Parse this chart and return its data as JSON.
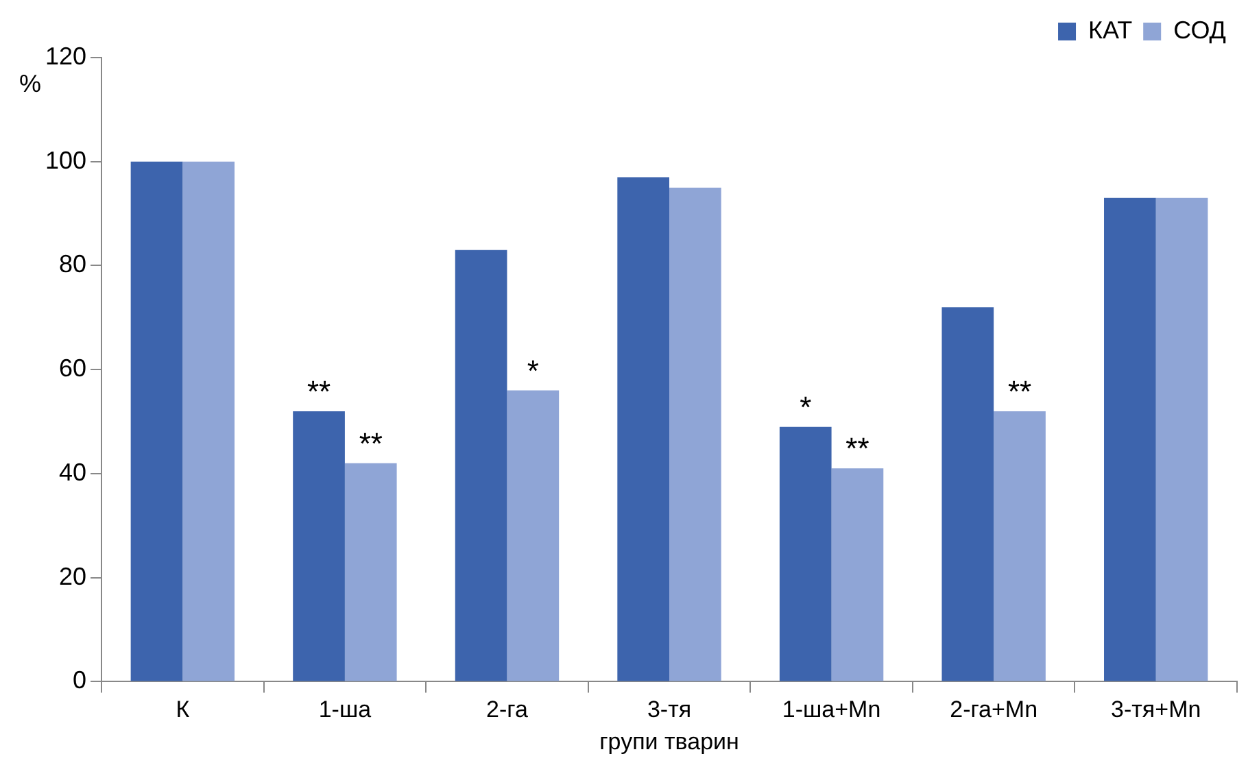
{
  "chart_data": {
    "type": "bar",
    "xlabel": "групи тварин",
    "ylabel": "%",
    "categories": [
      "К",
      "1-ша",
      "2-га",
      "3-тя",
      "1-ша+Mn",
      "2-га+Mn",
      "3-тя+Mn"
    ],
    "series": [
      {
        "name": "КАТ",
        "color": "#3d64ad",
        "values": [
          100,
          52,
          83,
          97,
          49,
          72,
          93
        ]
      },
      {
        "name": "СОД",
        "color": "#8fa5d6",
        "values": [
          100,
          42,
          56,
          95,
          41,
          52,
          93
        ]
      }
    ],
    "ylim": [
      0,
      120
    ],
    "yticks": [
      0,
      20,
      40,
      60,
      80,
      100,
      120
    ],
    "grid": false,
    "legend": "top right",
    "annotations": [
      {
        "text": "**",
        "x": "1-ша",
        "y": 52
      },
      {
        "text": "**",
        "x": "1-ша",
        "y": 42
      },
      {
        "text": "*",
        "x": "2-га",
        "y": 56
      },
      {
        "text": "*",
        "x": "1-ша+Mn",
        "y": 49
      },
      {
        "text": "**",
        "x": "1-ша+Mn",
        "y": 41
      },
      {
        "text": "**",
        "x": "2-га+Mn",
        "y": 52
      }
    ]
  }
}
